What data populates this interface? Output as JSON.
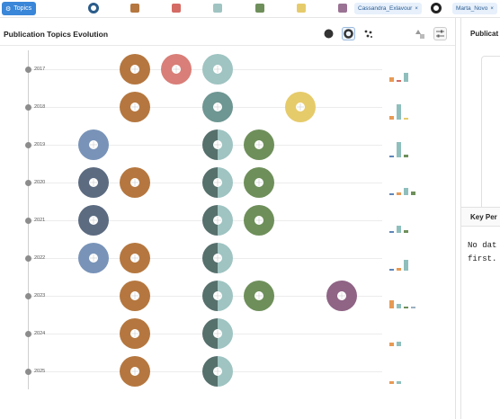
{
  "filters": {
    "topics_label": "Topics",
    "person_1": "Cassandra_Exlavour",
    "person_2": "Marta_Novo",
    "remove_glyph": "×",
    "swatch_colors": [
      "#b5773f",
      "#d46b64",
      "#9fc4c2",
      "#6e8f5a",
      "#e6cb6b",
      "#9a7294"
    ]
  },
  "panel": {
    "title": "Publication Topics Evolution",
    "view_modes": [
      "donut-filled",
      "donut-ring",
      "scatter"
    ],
    "active_view": "donut-ring",
    "tools": [
      "shapes-icon",
      "sliders-icon"
    ]
  },
  "topic_colors": {
    "A": "#7993b8",
    "B": "#b5773f",
    "C": "#d46b64",
    "D": "#9fc4c2",
    "E": "#6e8f5a",
    "F": "#e6cb6b",
    "G": "#8f6485"
  },
  "timeline": [
    {
      "year": "2017",
      "donuts": [
        {
          "col": 2,
          "color": "#b5773f"
        },
        {
          "col": 3,
          "color": "#d97e78"
        },
        {
          "col": 4,
          "color": "#9fc4c2"
        }
      ],
      "bars": [
        {
          "color": "#e79a55",
          "h": 0.3
        },
        {
          "color": "#d46b64",
          "h": 0.1
        },
        {
          "color": "#8fbfbd",
          "h": 0.6
        }
      ]
    },
    {
      "year": "2018",
      "donuts": [
        {
          "col": 2,
          "color": "#b5773f"
        },
        {
          "col": 4,
          "color": "#6e9692"
        },
        {
          "col": 6,
          "color": "#e6cb6b"
        }
      ],
      "bars": [
        {
          "color": "#e79a55",
          "h": 0.25
        },
        {
          "color": "#8fbfbd",
          "h": 1.0
        },
        {
          "color": "#e6cb6b",
          "h": 0.1
        }
      ]
    },
    {
      "year": "2019",
      "donuts": [
        {
          "col": 1,
          "color": "#7993b8"
        },
        {
          "col": 4,
          "color": "#9fc4c2",
          "split": "#56706c"
        },
        {
          "col": 5,
          "color": "#6e8f5a"
        }
      ],
      "bars": [
        {
          "color": "#5f86b8",
          "h": 0.1
        },
        {
          "color": "#8fbfbd",
          "h": 1.0
        },
        {
          "color": "#6e8f5a",
          "h": 0.2
        }
      ]
    },
    {
      "year": "2020",
      "donuts": [
        {
          "col": 1,
          "color": "#5c6b80"
        },
        {
          "col": 2,
          "color": "#b5773f"
        },
        {
          "col": 4,
          "color": "#9fc4c2",
          "split": "#56706c"
        },
        {
          "col": 5,
          "color": "#6e8f5a"
        }
      ],
      "bars": [
        {
          "color": "#5f86b8",
          "h": 0.1
        },
        {
          "color": "#e79a55",
          "h": 0.15
        },
        {
          "color": "#8fbfbd",
          "h": 0.5
        },
        {
          "color": "#6e8f5a",
          "h": 0.25
        }
      ]
    },
    {
      "year": "2021",
      "donuts": [
        {
          "col": 1,
          "color": "#5c6b80"
        },
        {
          "col": 4,
          "color": "#9fc4c2",
          "split": "#56706c"
        },
        {
          "col": 5,
          "color": "#6e8f5a"
        }
      ],
      "bars": [
        {
          "color": "#5f86b8",
          "h": 0.1
        },
        {
          "color": "#8fbfbd",
          "h": 0.45
        },
        {
          "color": "#6e8f5a",
          "h": 0.2
        }
      ]
    },
    {
      "year": "2022",
      "donuts": [
        {
          "col": 1,
          "color": "#7993b8"
        },
        {
          "col": 2,
          "color": "#b5773f"
        },
        {
          "col": 4,
          "color": "#9fc4c2",
          "split": "#56706c"
        }
      ],
      "bars": [
        {
          "color": "#5f86b8",
          "h": 0.1
        },
        {
          "color": "#e79a55",
          "h": 0.15
        },
        {
          "color": "#8fbfbd",
          "h": 0.7
        }
      ]
    },
    {
      "year": "2023",
      "donuts": [
        {
          "col": 2,
          "color": "#b5773f"
        },
        {
          "col": 4,
          "color": "#9fc4c2",
          "split": "#56706c"
        },
        {
          "col": 5,
          "color": "#6e8f5a"
        },
        {
          "col": 7,
          "color": "#8f6485"
        }
      ],
      "bars": [
        {
          "color": "#e79a55",
          "h": 0.55
        },
        {
          "color": "#8fbfbd",
          "h": 0.3
        },
        {
          "color": "#6e8f5a",
          "h": 0.1
        },
        {
          "color": "#9ab0c0",
          "h": 0.08
        }
      ]
    },
    {
      "year": "2024",
      "donuts": [
        {
          "col": 2,
          "color": "#b5773f"
        },
        {
          "col": 4,
          "color": "#9fc4c2",
          "split": "#56706c"
        }
      ],
      "bars": [
        {
          "color": "#e79a55",
          "h": 0.25
        },
        {
          "color": "#8fbfbd",
          "h": 0.3
        }
      ]
    },
    {
      "year": "2025",
      "donuts": [
        {
          "col": 2,
          "color": "#b5773f"
        },
        {
          "col": 4,
          "color": "#9fc4c2",
          "split": "#56706c"
        }
      ],
      "bars": [
        {
          "color": "#e79a55",
          "h": 0.15
        },
        {
          "color": "#8fbfbd",
          "h": 0.2
        }
      ]
    }
  ],
  "right_panel": {
    "title": "Publicat",
    "key_label": "Key Per",
    "empty_line_1": "No dat",
    "empty_line_2": "first."
  }
}
